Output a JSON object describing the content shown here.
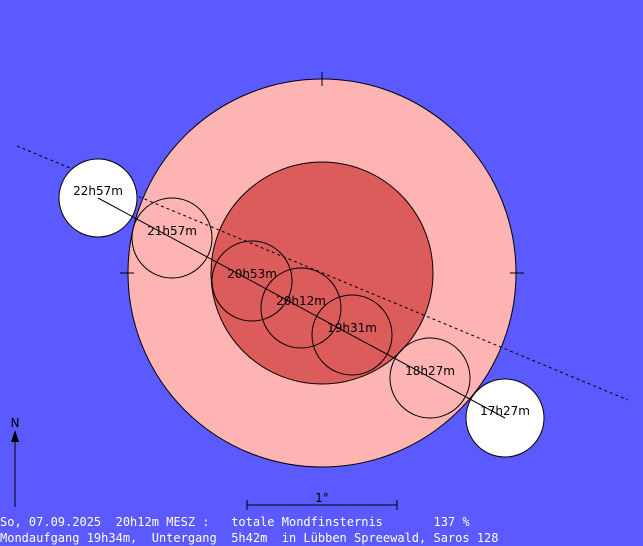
{
  "colors": {
    "background": "#5a5aff",
    "penumbra": "#ffb4b4",
    "umbra": "#dc5c5c",
    "moon": "#ffffff",
    "stroke": "#000000",
    "text": "#ffffff"
  },
  "north_label": "N",
  "scale_label": "1°",
  "moon_positions": [
    {
      "label": "17h27m",
      "fill": "moon"
    },
    {
      "label": "18h27m",
      "fill": "none"
    },
    {
      "label": "19h31m",
      "fill": "none"
    },
    {
      "label": "20h12m",
      "fill": "none"
    },
    {
      "label": "20h53m",
      "fill": "none"
    },
    {
      "label": "21h57m",
      "fill": "none"
    },
    {
      "label": "22h57m",
      "fill": "moon"
    }
  ],
  "info": {
    "line1": "So, 07.09.2025  20h12m MESZ :   totale Mondfinsternis       137 %",
    "line2": "Mondaufgang 19h34m,  Untergang  5h42m  in Lübben Spreewald, Saros 128"
  }
}
